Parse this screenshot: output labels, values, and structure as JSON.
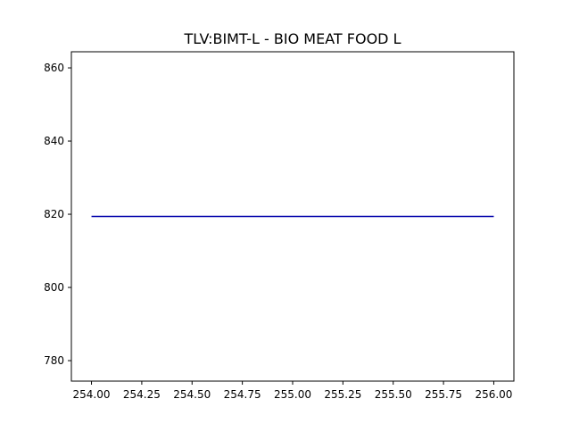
{
  "chart_data": {
    "type": "line",
    "title": "TLV:BIMT-L - BIO MEAT FOOD L",
    "xlabel": "",
    "ylabel": "",
    "xlim": [
      253.9,
      256.1
    ],
    "ylim": [
      774.4,
      864.4
    ],
    "xticks": [
      254.0,
      254.25,
      254.5,
      254.75,
      255.0,
      255.25,
      255.5,
      255.75,
      256.0
    ],
    "xtick_labels": [
      "254.00",
      "254.25",
      "254.50",
      "254.75",
      "255.00",
      "255.25",
      "255.50",
      "255.75",
      "256.00"
    ],
    "yticks": [
      780,
      800,
      820,
      840,
      860
    ],
    "ytick_labels": [
      "780",
      "800",
      "820",
      "840",
      "860"
    ],
    "grid": false,
    "series": [
      {
        "color": "#0000aa",
        "x": [
          254.0,
          256.0
        ],
        "y": [
          819.4,
          819.4
        ]
      }
    ]
  }
}
